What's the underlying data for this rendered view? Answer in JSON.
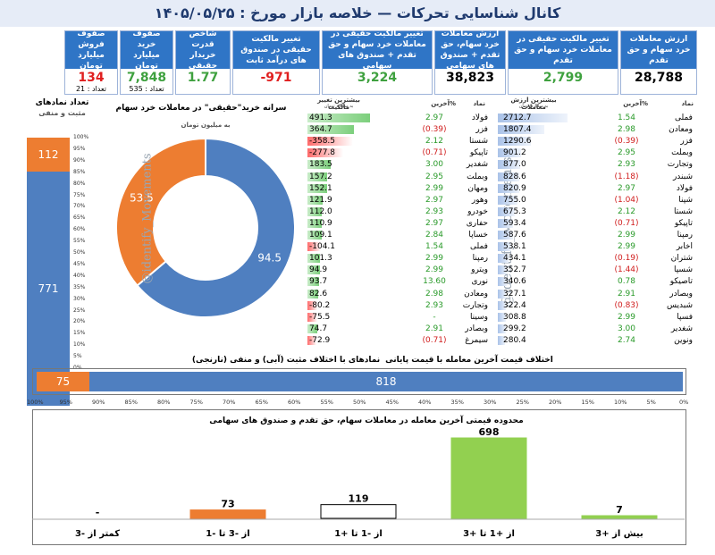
{
  "title": "کانال شناسایی تحرکات  —  خلاصه بازار مورخ : ۱۴۰۵/۰۵/۲۵",
  "cards": [
    {
      "head": "ارزش معاملات خرد سهام و حق تقدم",
      "value": "28,788",
      "color": "#000000"
    },
    {
      "head": "تغییر مالکیت حقیقی در معاملات خرد سهام و حق تقدم",
      "value": "2,799",
      "color": "#3fa13f"
    },
    {
      "head": "ارزش معاملات خرد سهام، حق تقدم + صندوق های سهامی",
      "value": "38,823",
      "color": "#000000"
    },
    {
      "head": "تغییر مالکیت حقیقی در معاملات خرد سهام و حق تقدم + صندوق های سهامی",
      "value": "3,224",
      "color": "#3fa13f"
    },
    {
      "head": "تغییر مالکیت حقیقی در صندوق های درآمد ثابت",
      "value": "-971",
      "color": "#e01f1f"
    },
    {
      "head": "شاخص قدرت خریدار حقیقی",
      "value": "1.77",
      "color": "#3fa13f"
    },
    {
      "head": "صفوف خرید میلیارد تومان",
      "value": "7,848",
      "sub": "تعداد : 535",
      "color": "#3fa13f"
    },
    {
      "head": "صفوف فروش میلیارد تومان",
      "value": "134",
      "sub": "تعداد : 21",
      "color": "#e01f1f"
    }
  ],
  "value_table": {
    "header_sym": "نماد",
    "header_pct": "%آخرین",
    "header_val": "بیشترین ارزش معاملات",
    "header_unit": "به میلیارد تومان",
    "rows": [
      {
        "sym": "فملی",
        "pct": "1.54",
        "val": "2712.7",
        "v": 2712.7,
        "pos": true
      },
      {
        "sym": "ومعادن",
        "pct": "2.98",
        "val": "1807.4",
        "v": 1807.4,
        "pos": true
      },
      {
        "sym": "فزر",
        "pct": "(0.39)",
        "val": "1290.6",
        "v": 1290.6,
        "pos": false
      },
      {
        "sym": "وبملت",
        "pct": "2.95",
        "val": "901.2",
        "v": 901.2,
        "pos": true
      },
      {
        "sym": "وتجارت",
        "pct": "2.93",
        "val": "877.0",
        "v": 877.0,
        "pos": true
      },
      {
        "sym": "شبندر",
        "pct": "(1.18)",
        "val": "828.6",
        "v": 828.6,
        "pos": false
      },
      {
        "sym": "فولاد",
        "pct": "2.97",
        "val": "820.9",
        "v": 820.9,
        "pos": true
      },
      {
        "sym": "شپنا",
        "pct": "(1.04)",
        "val": "755.0",
        "v": 755.0,
        "pos": false
      },
      {
        "sym": "شستا",
        "pct": "2.12",
        "val": "675.3",
        "v": 675.3,
        "pos": true
      },
      {
        "sym": "تاپیکو",
        "pct": "(0.71)",
        "val": "593.4",
        "v": 593.4,
        "pos": false
      },
      {
        "sym": "رمپنا",
        "pct": "2.99",
        "val": "587.6",
        "v": 587.6,
        "pos": true
      },
      {
        "sym": "اخابر",
        "pct": "2.99",
        "val": "538.1",
        "v": 538.1,
        "pos": true
      },
      {
        "sym": "شتران",
        "pct": "(0.19)",
        "val": "434.1",
        "v": 434.1,
        "pos": false
      },
      {
        "sym": "شسپا",
        "pct": "(1.44)",
        "val": "352.7",
        "v": 352.7,
        "pos": false
      },
      {
        "sym": "تاصیکو",
        "pct": "0.78",
        "val": "340.6",
        "v": 340.6,
        "pos": true
      },
      {
        "sym": "وبصادر",
        "pct": "2.91",
        "val": "327.1",
        "v": 327.1,
        "pos": true
      },
      {
        "sym": "شبدیس",
        "pct": "(0.83)",
        "val": "322.4",
        "v": 322.4,
        "pos": false
      },
      {
        "sym": "فسپا",
        "pct": "2.99",
        "val": "308.8",
        "v": 308.8,
        "pos": true
      },
      {
        "sym": "شغدیر",
        "pct": "3.00",
        "val": "299.2",
        "v": 299.2,
        "pos": true
      },
      {
        "sym": "ونوین",
        "pct": "2.74",
        "val": "280.4",
        "v": 280.4,
        "pos": true
      }
    ]
  },
  "owner_table": {
    "header_sym": "نماد",
    "header_pct": "%آخرین",
    "header_val": "بیشترین تغییر مالکیت",
    "header_unit": "به میلیارد تومان",
    "rows": [
      {
        "sym": "فولاد",
        "pct": "2.97",
        "val": "491.3",
        "v": 491.3,
        "pos": true
      },
      {
        "sym": "فزر",
        "pct": "(0.39)",
        "val": "364.7",
        "v": 364.7,
        "pos": false
      },
      {
        "sym": "شستا",
        "pct": "2.12",
        "val": "-358.5",
        "v": -358.5,
        "pos": true
      },
      {
        "sym": "تاپیکو",
        "pct": "(0.71)",
        "val": "-277.8",
        "v": -277.8,
        "pos": false
      },
      {
        "sym": "شغدیر",
        "pct": "3.00",
        "val": "183.5",
        "v": 183.5,
        "pos": true
      },
      {
        "sym": "وبملت",
        "pct": "2.95",
        "val": "157.2",
        "v": 157.2,
        "pos": true
      },
      {
        "sym": "ومهان",
        "pct": "2.99",
        "val": "152.1",
        "v": 152.1,
        "pos": true
      },
      {
        "sym": "وهور",
        "pct": "2.97",
        "val": "121.9",
        "v": 121.9,
        "pos": true
      },
      {
        "sym": "خودرو",
        "pct": "2.93",
        "val": "112.0",
        "v": 112.0,
        "pos": true
      },
      {
        "sym": "حفاری",
        "pct": "2.97",
        "val": "110.9",
        "v": 110.9,
        "pos": true
      },
      {
        "sym": "خساپا",
        "pct": "2.84",
        "val": "109.1",
        "v": 109.1,
        "pos": true
      },
      {
        "sym": "فملی",
        "pct": "1.54",
        "val": "-104.1",
        "v": -104.1,
        "pos": true
      },
      {
        "sym": "رمپنا",
        "pct": "2.99",
        "val": "101.3",
        "v": 101.3,
        "pos": true
      },
      {
        "sym": "ویترو",
        "pct": "2.99",
        "val": "94.9",
        "v": 94.9,
        "pos": true
      },
      {
        "sym": "نوری",
        "pct": "13.60",
        "val": "93.7",
        "v": 93.7,
        "pos": true
      },
      {
        "sym": "ومعادن",
        "pct": "2.98",
        "val": "82.6",
        "v": 82.6,
        "pos": true
      },
      {
        "sym": "وتجارت",
        "pct": "2.93",
        "val": "-80.2",
        "v": -80.2,
        "pos": true
      },
      {
        "sym": "وسینا",
        "pct": "-",
        "val": "-75.5",
        "v": -75.5,
        "pos": true
      },
      {
        "sym": "وبصادر",
        "pct": "2.91",
        "val": "74.7",
        "v": 74.7,
        "pos": true
      },
      {
        "sym": "سیمرغ",
        "pct": "(0.71)",
        "val": "-72.9",
        "v": -72.9,
        "pos": false
      }
    ]
  },
  "donut": {
    "title": "سرانه خرید\"حقیقی\" در معاملات خرد سهام",
    "unit": "به میلیون تومان",
    "slices": [
      {
        "label": "94.5",
        "value": 94.5,
        "color": "#4f7fc0"
      },
      {
        "label": "53.5",
        "value": 53.5,
        "color": "#ed7d31"
      }
    ]
  },
  "watermark": "@identify_Movements",
  "count_panel": {
    "title": "تعداد نمادهای",
    "legend": "مثبت و منفی",
    "neg": "112",
    "pos": "771",
    "ticks": [
      "100%",
      "95%",
      "90%",
      "85%",
      "80%",
      "75%",
      "70%",
      "65%",
      "60%",
      "55%",
      "50%",
      "45%",
      "40%",
      "35%",
      "30%",
      "25%",
      "20%",
      "15%",
      "10%",
      "5%",
      "0%"
    ]
  },
  "hbar": {
    "title_left": "نمادهای با اختلاف مثبت (آبی) و منفی (نارنجی)",
    "title_right": "اختلاف قیمت آخرین معامله با  قیمت پایانی",
    "neg": "75",
    "pos": "818",
    "ticks": [
      "100%",
      "95%",
      "90%",
      "85%",
      "80%",
      "75%",
      "70%",
      "65%",
      "60%",
      "55%",
      "50%",
      "45%",
      "40%",
      "35%",
      "30%",
      "25%",
      "20%",
      "15%",
      "10%",
      "5%",
      "0%"
    ]
  },
  "chart_data": {
    "type": "bar",
    "title": "محدوده قیمتی آخرین معامله در  معاملات سهام، حق تقدم و صندوق های سهامی",
    "categories": [
      "کمتر از -3",
      "از -3 تا -1",
      "از -1 تا +1",
      "از +1 تا +3",
      "بیش از +3"
    ],
    "values": [
      0,
      73,
      119,
      698,
      7
    ],
    "labels": [
      "-",
      "73",
      "119",
      "698",
      "7"
    ],
    "colors": [
      "#ed7d31",
      "#ed7d31",
      "#ffffff",
      "#92d050",
      "#92d050"
    ]
  }
}
